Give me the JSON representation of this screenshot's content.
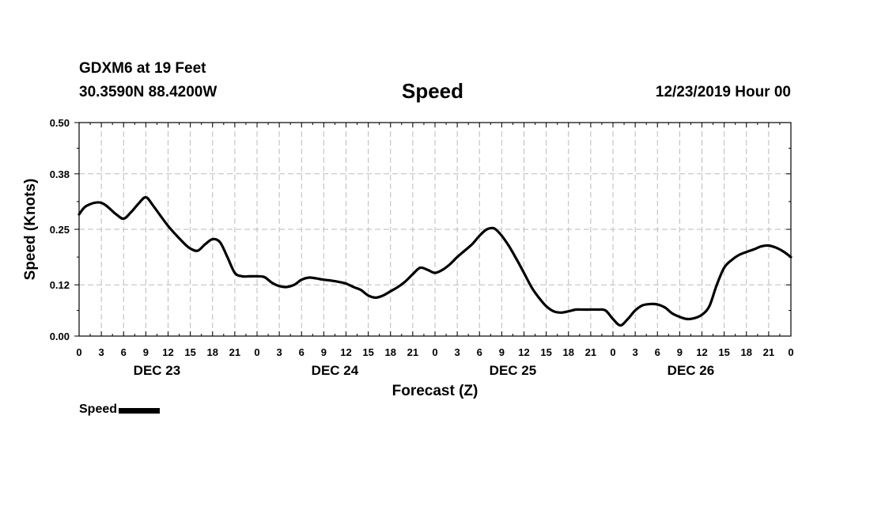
{
  "header": {
    "station": "GDXM6 at 19 Feet",
    "coords": "30.3590N 88.4200W",
    "title": "Speed",
    "runtime": "12/23/2019 Hour 00"
  },
  "legend": {
    "label": "Speed"
  },
  "colors": {
    "line": "#000000",
    "grid": "#bbbbbb"
  },
  "chart_data": {
    "type": "line",
    "title": "Speed",
    "xlabel": "Forecast (Z)",
    "ylabel": "Speed (Knots)",
    "xlim": [
      0,
      96
    ],
    "ylim": [
      0,
      0.5
    ],
    "yticks": [
      "0.00",
      "0.12",
      "0.25",
      "0.38",
      "0.50"
    ],
    "xtick_labels": [
      "0",
      "3",
      "6",
      "9",
      "12",
      "15",
      "18",
      "21",
      "0",
      "3",
      "6",
      "9",
      "12",
      "15",
      "18",
      "21",
      "0",
      "3",
      "6",
      "9",
      "12",
      "15",
      "18",
      "21",
      "0",
      "3",
      "6",
      "9",
      "12",
      "15",
      "18",
      "21",
      "0"
    ],
    "day_labels": [
      "DEC 23",
      "DEC 24",
      "DEC 25",
      "DEC 26"
    ],
    "grid": true,
    "legend_position": "bottom-left",
    "series": [
      {
        "name": "Speed",
        "x": [
          0,
          1,
          3,
          5,
          6,
          7,
          8,
          9,
          10,
          12,
          14,
          15,
          16,
          17,
          18,
          19,
          20,
          21,
          22,
          23,
          24,
          25,
          26,
          27,
          28,
          29,
          30,
          31,
          32,
          33,
          34,
          35,
          36,
          37,
          38,
          39,
          40,
          41,
          42,
          43,
          44,
          45,
          46,
          47,
          48,
          49,
          50,
          51,
          52,
          53,
          54,
          55,
          56,
          57,
          58,
          59,
          60,
          61,
          62,
          63,
          64,
          65,
          66,
          67,
          68,
          69,
          70,
          71,
          72,
          73,
          74,
          75,
          76,
          77,
          78,
          79,
          80,
          81,
          82,
          83,
          84,
          85,
          86,
          87,
          88,
          89,
          90,
          91,
          92,
          93,
          94,
          95,
          96
        ],
        "y": [
          0.285,
          0.305,
          0.312,
          0.285,
          0.275,
          0.29,
          0.31,
          0.325,
          0.305,
          0.258,
          0.22,
          0.205,
          0.2,
          0.215,
          0.227,
          0.22,
          0.185,
          0.148,
          0.14,
          0.14,
          0.14,
          0.138,
          0.125,
          0.117,
          0.115,
          0.12,
          0.132,
          0.137,
          0.135,
          0.132,
          0.13,
          0.127,
          0.123,
          0.115,
          0.108,
          0.095,
          0.09,
          0.095,
          0.105,
          0.115,
          0.128,
          0.145,
          0.16,
          0.155,
          0.148,
          0.155,
          0.168,
          0.185,
          0.2,
          0.215,
          0.235,
          0.25,
          0.252,
          0.235,
          0.21,
          0.18,
          0.148,
          0.115,
          0.09,
          0.07,
          0.058,
          0.055,
          0.058,
          0.062,
          0.062,
          0.062,
          0.062,
          0.06,
          0.04,
          0.025,
          0.04,
          0.06,
          0.072,
          0.075,
          0.074,
          0.067,
          0.053,
          0.045,
          0.04,
          0.042,
          0.05,
          0.07,
          0.12,
          0.16,
          0.178,
          0.19,
          0.197,
          0.203,
          0.21,
          0.212,
          0.207,
          0.198,
          0.185
        ]
      }
    ]
  }
}
